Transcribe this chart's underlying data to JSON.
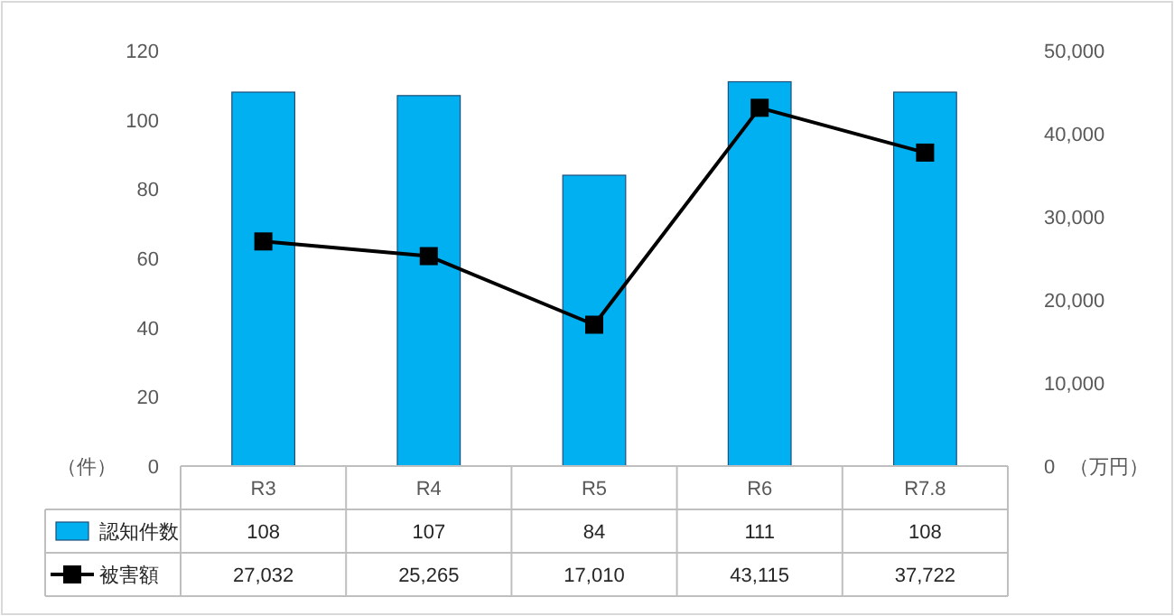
{
  "chart_data": {
    "type": "bar",
    "categories": [
      "R3",
      "R4",
      "R5",
      "R6",
      "R7.8"
    ],
    "series": [
      {
        "name": "認知件数",
        "color": "#00b0f0",
        "values": [
          108,
          107,
          84,
          111,
          108
        ],
        "value_labels": [
          "108",
          "107",
          "84",
          "111",
          "108"
        ]
      },
      {
        "name": "被害額",
        "type": "line",
        "axis": "y2",
        "color": "#000000",
        "values": [
          27032,
          25265,
          17010,
          43115,
          37722
        ],
        "value_labels": [
          "27,032",
          "25,265",
          "17,010",
          "43,115",
          "37,722"
        ]
      }
    ],
    "ylim": [
      0,
      120
    ],
    "yticks": [
      0,
      20,
      40,
      60,
      80,
      100,
      120
    ],
    "y2lim": [
      0,
      50000
    ],
    "y2ticks": [
      {
        "value": 0,
        "label": "0"
      },
      {
        "value": 10000,
        "label": "10,000"
      },
      {
        "value": 20000,
        "label": "20,000"
      },
      {
        "value": 30000,
        "label": "30,000"
      },
      {
        "value": 40000,
        "label": "40,000"
      },
      {
        "value": 50000,
        "label": "50,000"
      }
    ],
    "ylabel": "（件）",
    "y2label": "（万円）",
    "marker": "square",
    "line_style": "solid",
    "legend": "bottom",
    "grid": false
  }
}
